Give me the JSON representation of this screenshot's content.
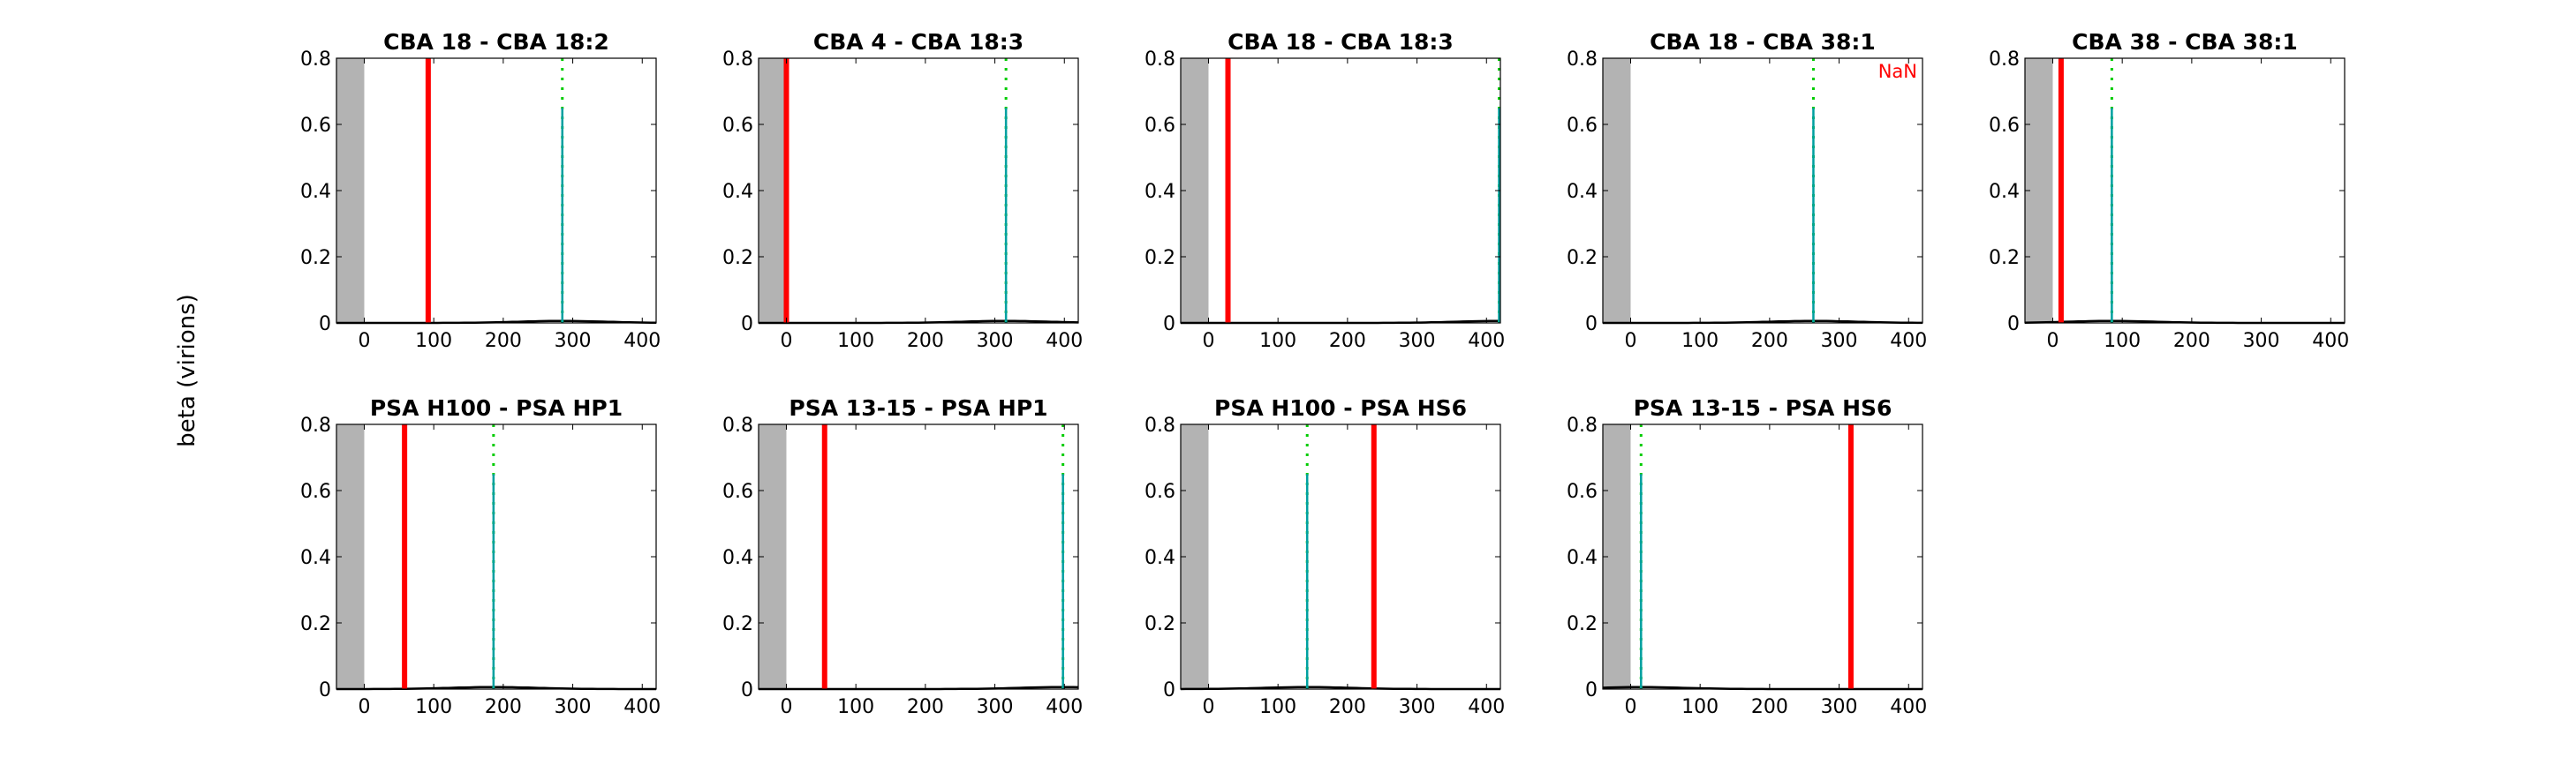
{
  "chart_data": {
    "type": "line",
    "ylabel": "beta (virions)",
    "xlim": [
      -40,
      420
    ],
    "ylim": [
      0,
      0.8
    ],
    "xticks": [
      0,
      100,
      200,
      300,
      400
    ],
    "yticks": [
      0,
      0.2,
      0.4,
      0.6,
      0.8
    ],
    "grey_region": [
      -40,
      0
    ],
    "colors": {
      "red_line": "#ff0000",
      "green_dotted": "#00cc00",
      "teal_spike": "#00a0a0",
      "curve": "#000000",
      "grey": "#b3b3b3"
    },
    "panels": [
      {
        "title": "CBA 18 - CBA 18:2",
        "red_x": 92,
        "spike_x": 285,
        "spike_height": 0.65,
        "annotation": ""
      },
      {
        "title": "CBA 4 - CBA 18:3",
        "red_x": 0,
        "spike_x": 316,
        "spike_height": 0.65,
        "annotation": ""
      },
      {
        "title": "CBA 18 - CBA 18:3",
        "red_x": 28,
        "spike_x": 420,
        "spike_height": 0.65,
        "annotation": ""
      },
      {
        "title": "CBA 18 - CBA 38:1",
        "red_x": null,
        "spike_x": 263,
        "spike_height": 0.65,
        "annotation": "NaN"
      },
      {
        "title": "CBA 38 - CBA 38:1",
        "red_x": 12,
        "spike_x": 85,
        "spike_height": 0.65,
        "annotation": ""
      },
      {
        "title": "PSA H100 - PSA HP1",
        "red_x": 58,
        "spike_x": 186,
        "spike_height": 0.65,
        "annotation": ""
      },
      {
        "title": "PSA 13-15 - PSA HP1",
        "red_x": 55,
        "spike_x": 398,
        "spike_height": 0.65,
        "annotation": ""
      },
      {
        "title": "PSA H100 - PSA HS6",
        "red_x": 238,
        "spike_x": 142,
        "spike_height": 0.65,
        "annotation": ""
      },
      {
        "title": "PSA 13-15 - PSA HS6",
        "red_x": 317,
        "spike_x": 15,
        "spike_height": 0.65,
        "annotation": ""
      }
    ]
  }
}
